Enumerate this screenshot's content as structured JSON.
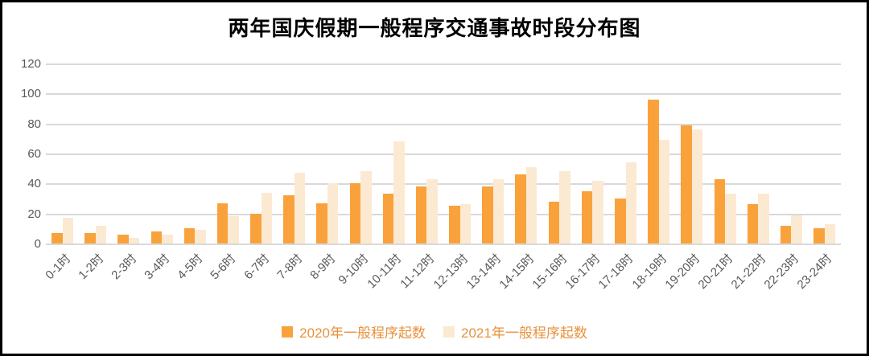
{
  "chart_data": {
    "type": "bar",
    "title": "两年国庆假期一般程序交通事故时段分布图",
    "categories": [
      "0-1时",
      "1-2时",
      "2-3时",
      "3-4时",
      "4-5时",
      "5-6时",
      "6-7时",
      "7-8时",
      "8-9时",
      "9-10时",
      "10-11时",
      "11-12时",
      "12-13时",
      "13-14时",
      "14-15时",
      "15-16时",
      "16-17时",
      "17-18时",
      "18-19时",
      "19-20时",
      "20-21时",
      "21-22时",
      "22-23时",
      "23-24时"
    ],
    "series": [
      {
        "name": "2020年一般程序起数",
        "color": "#F9A23C",
        "values": [
          7,
          7,
          6,
          8,
          10,
          27,
          20,
          32,
          27,
          40,
          33,
          38,
          25,
          38,
          46,
          28,
          35,
          30,
          96,
          79,
          43,
          26,
          12,
          10
        ]
      },
      {
        "name": "2021年一般程序起数",
        "color": "#FCE9D2",
        "values": [
          17,
          12,
          4,
          6,
          9,
          18,
          34,
          47,
          40,
          48,
          68,
          43,
          26,
          43,
          51,
          48,
          42,
          54,
          69,
          76,
          33,
          33,
          19,
          13
        ]
      }
    ],
    "xlabel": "",
    "ylabel": "",
    "ylim": [
      0,
      120
    ],
    "yticks": [
      0,
      20,
      40,
      60,
      80,
      100,
      120
    ],
    "grid": true,
    "legend_position": "bottom",
    "colors": {
      "gridline": "#D9D9D9",
      "axis_tick_text": "#595959",
      "legend_text": "#E8913D",
      "frame_border": "#000000",
      "background": "#FFFFFF"
    }
  }
}
